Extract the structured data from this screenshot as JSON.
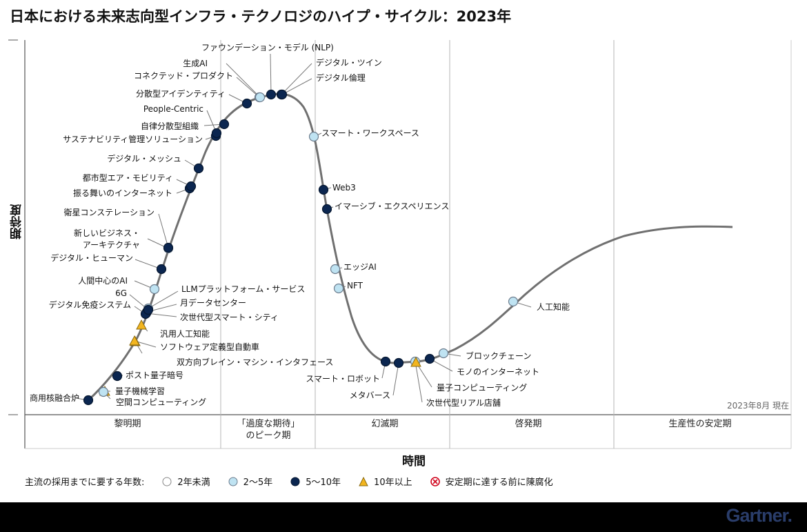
{
  "title": "日本における未来志向型インフラ・テクノロジのハイプ・サイクル：2023年",
  "axes": {
    "y_label": "期待度",
    "x_label": "時間"
  },
  "as_of": "2023年8月 現在",
  "phases": [
    {
      "name": "黎明期"
    },
    {
      "name": "「過度な期待」\nのピーク期"
    },
    {
      "name": "幻滅期"
    },
    {
      "name": "啓発期"
    },
    {
      "name": "生産性の安定期"
    }
  ],
  "legend": {
    "title": "主流の採用までに要する年数:",
    "items": [
      {
        "key": "lt2",
        "label": "2年未満",
        "color": "#ffffff"
      },
      {
        "key": "2to5",
        "label": "2〜5年",
        "color": "#bfe3f2"
      },
      {
        "key": "5to10",
        "label": "5〜10年",
        "color": "#0b2650"
      },
      {
        "key": "gt10",
        "label": "10年以上",
        "color": "#f2b51f"
      },
      {
        "key": "obsolete",
        "label": "安定期に達する前に陳腐化",
        "color": "#d0021b"
      }
    ]
  },
  "technologies": [
    {
      "name": "商用核融合炉",
      "type": "5to10",
      "phase": "黎明期"
    },
    {
      "name": "量子機械学習",
      "type": "gt10",
      "phase": "黎明期"
    },
    {
      "name": "空間コンピューティング",
      "type": "2to5",
      "phase": "黎明期"
    },
    {
      "name": "ポスト量子暗号",
      "type": "5to10",
      "phase": "黎明期"
    },
    {
      "name": "双方向ブレイン・マシン・インタフェース",
      "type": "gt10",
      "phase": "黎明期"
    },
    {
      "name": "ソフトウェア定義型自動車",
      "type": "gt10",
      "phase": "黎明期"
    },
    {
      "name": "汎用人工知能",
      "type": "gt10",
      "phase": "黎明期"
    },
    {
      "name": "次世代型スマート・シティ",
      "type": "5to10",
      "phase": "黎明期"
    },
    {
      "name": "月データセンター",
      "type": "5to10",
      "phase": "黎明期"
    },
    {
      "name": "LLMプラットフォーム・サービス",
      "type": "2to5",
      "phase": "黎明期"
    },
    {
      "name": "デジタル免疫システム",
      "type": "5to10",
      "phase": "黎明期"
    },
    {
      "name": "6G",
      "type": "5to10",
      "phase": "黎明期"
    },
    {
      "name": "人間中心のAI",
      "type": "2to5",
      "phase": "黎明期"
    },
    {
      "name": "デジタル・ヒューマン",
      "type": "5to10",
      "phase": "黎明期"
    },
    {
      "name": "新しいビジネス・\nアーキテクチャ",
      "type": "2to5",
      "phase": "黎明期"
    },
    {
      "name": "衛星コンステレーション",
      "type": "5to10",
      "phase": "黎明期"
    },
    {
      "name": "振る舞いのインターネット",
      "type": "5to10",
      "phase": "黎明期"
    },
    {
      "name": "都市型エア・モビリティ",
      "type": "5to10",
      "phase": "黎明期"
    },
    {
      "name": "デジタル・メッシュ",
      "type": "5to10",
      "phase": "黎明期"
    },
    {
      "name": "サステナビリティ管理ソリューション",
      "type": "5to10",
      "phase": "黎明期"
    },
    {
      "name": "自律分散型組織",
      "type": "5to10",
      "phase": "「過度な期待」のピーク期"
    },
    {
      "name": "People-Centric",
      "type": "5to10",
      "phase": "「過度な期待」のピーク期"
    },
    {
      "name": "分散型アイデンティティ",
      "type": "5to10",
      "phase": "「過度な期待」のピーク期"
    },
    {
      "name": "コネクテッド・プロダクト",
      "type": "2to5",
      "phase": "「過度な期待」のピーク期"
    },
    {
      "name": "生成AI",
      "type": "2to5",
      "phase": "「過度な期待」のピーク期"
    },
    {
      "name": "ファウンデーション・モデル (NLP)",
      "type": "5to10",
      "phase": "「過度な期待」のピーク期"
    },
    {
      "name": "デジタル・ツイン",
      "type": "5to10",
      "phase": "「過度な期待」のピーク期"
    },
    {
      "name": "デジタル倫理",
      "type": "5to10",
      "phase": "「過度な期待」のピーク期"
    },
    {
      "name": "スマート・ワークスペース",
      "type": "2to5",
      "phase": "幻滅期"
    },
    {
      "name": "Web3",
      "type": "5to10",
      "phase": "幻滅期"
    },
    {
      "name": "イマーシブ・エクスペリエンス",
      "type": "5to10",
      "phase": "幻滅期"
    },
    {
      "name": "エッジAI",
      "type": "2to5",
      "phase": "幻滅期"
    },
    {
      "name": "NFT",
      "type": "2to5",
      "phase": "幻滅期"
    },
    {
      "name": "スマート・ロボット",
      "type": "5to10",
      "phase": "幻滅期"
    },
    {
      "name": "メタバース",
      "type": "5to10",
      "phase": "幻滅期"
    },
    {
      "name": "次世代型リアル店舗",
      "type": "2to5",
      "phase": "幻滅期"
    },
    {
      "name": "量子コンピューティング",
      "type": "gt10",
      "phase": "幻滅期"
    },
    {
      "name": "モノのインターネット",
      "type": "5to10",
      "phase": "幻滅期"
    },
    {
      "name": "ブロックチェーン",
      "type": "2to5",
      "phase": "幻滅期"
    },
    {
      "name": "人工知能",
      "type": "2to5",
      "phase": "啓発期"
    }
  ],
  "brand": "Gartner."
}
